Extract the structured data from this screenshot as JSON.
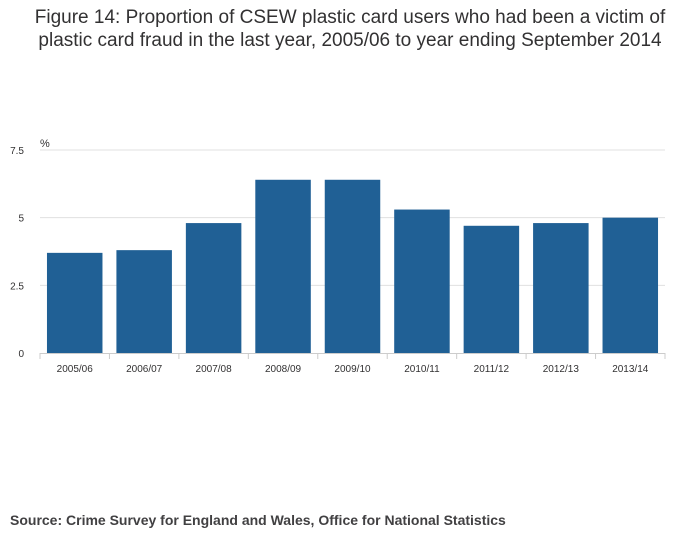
{
  "chart_data": {
    "type": "bar",
    "title_lines": [
      "Figure 14: Proportion of CSEW plastic card users who had been a victim of",
      "plastic card fraud in the last year, 2005/06 to year ending September 2014"
    ],
    "ylabel": "%",
    "xlabel": "",
    "categories": [
      "2005/06",
      "2006/07",
      "2007/08",
      "2008/09",
      "2009/10",
      "2010/11",
      "2011/12",
      "2012/13",
      "2013/14"
    ],
    "values": [
      3.7,
      3.8,
      4.8,
      6.4,
      6.4,
      5.3,
      4.7,
      4.8,
      5.0
    ],
    "ylim": [
      0,
      7.5
    ],
    "yticks": [
      0,
      2.5,
      5,
      7.5
    ],
    "ytick_labels": [
      "0",
      "2.5",
      "5",
      "7.5"
    ],
    "grid": true,
    "legend": "none"
  },
  "colors": {
    "bar": "#206095",
    "grid": "#e0e0e0",
    "axis": "#cccccc",
    "text": "#323132"
  },
  "source": "Source: Crime Survey for England and Wales, Office for National Statistics"
}
